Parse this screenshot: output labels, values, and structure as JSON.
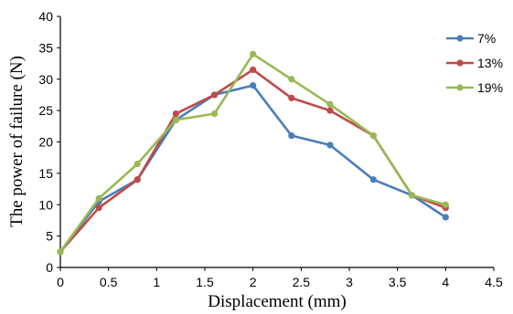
{
  "chart_data": {
    "type": "line",
    "xlabel": "Displacement (mm)",
    "ylabel": "The power of failure (N)",
    "xlim": [
      0,
      4.5
    ],
    "ylim": [
      0,
      40
    ],
    "x_ticks": [
      "0",
      "0.5",
      "1",
      "1.5",
      "2",
      "2.5",
      "3",
      "3.5",
      "4",
      "4.5"
    ],
    "y_ticks": [
      "0",
      "5",
      "10",
      "15",
      "20",
      "25",
      "30",
      "35",
      "40"
    ],
    "grid": false,
    "legend_position": "top-right",
    "series": [
      {
        "name": "7%",
        "color": "#4a7ebb",
        "x": [
          0,
          0.4,
          0.8,
          1.2,
          1.6,
          2.0,
          2.4,
          2.8,
          3.25,
          3.65,
          4.0
        ],
        "y": [
          2.5,
          10.5,
          14.0,
          23.5,
          27.5,
          29.0,
          21.0,
          19.5,
          14.0,
          11.5,
          8.0
        ]
      },
      {
        "name": "13%",
        "color": "#be4b48",
        "x": [
          0,
          0.4,
          0.8,
          1.2,
          1.6,
          2.0,
          2.4,
          2.8,
          3.25,
          3.65,
          4.0
        ],
        "y": [
          2.5,
          9.5,
          14.0,
          24.5,
          27.5,
          31.5,
          27.0,
          25.0,
          21.0,
          11.5,
          9.5
        ]
      },
      {
        "name": "19%",
        "color": "#98b954",
        "x": [
          0,
          0.4,
          0.8,
          1.2,
          1.6,
          2.0,
          2.4,
          2.8,
          3.25,
          3.65,
          4.0
        ],
        "y": [
          2.5,
          11.0,
          16.5,
          23.5,
          24.5,
          34.0,
          30.0,
          26.0,
          21.0,
          11.5,
          10.0
        ]
      }
    ]
  }
}
